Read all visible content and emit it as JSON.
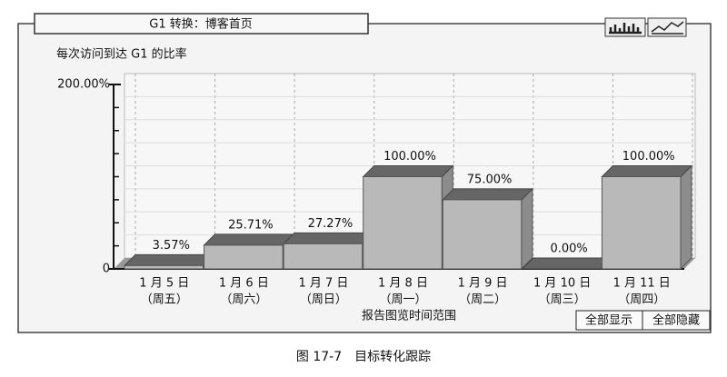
{
  "chart_data": {
    "type": "bar3d",
    "header": "G1 转换：博客首页",
    "y_label": "每次访问到达 G1 的比率",
    "x_label": "报告图览时间范围",
    "categories": [
      "1 月 5 日",
      "1 月 6 日",
      "1 月 7 日",
      "1 月 8 日",
      "1 月 9 日",
      "1 月 10 日",
      "1 月 11 日"
    ],
    "weekdays": [
      "（周五）",
      "（周六）",
      "（周日）",
      "（周一）",
      "（周二）",
      "（周三）",
      "（周四）"
    ],
    "values": [
      3.57,
      25.71,
      27.27,
      100,
      75,
      0,
      100
    ],
    "value_labels": [
      "3.57%",
      "25.71%",
      "27.27%",
      "100.00%",
      "75.00%",
      "0.00%",
      "100.00%"
    ],
    "color": "#b9b9b9",
    "ylim": [
      0,
      200
    ],
    "yticks": [
      0,
      {
        "value": 200,
        "label": "200.00%"
      }
    ],
    "minor_yticks": [
      25,
      50,
      75,
      100,
      125,
      150,
      175
    ],
    "grid": true,
    "buttons": [
      "全部显示",
      "全部隐藏"
    ],
    "caption": "图 17-7　目标转化跟踪"
  }
}
